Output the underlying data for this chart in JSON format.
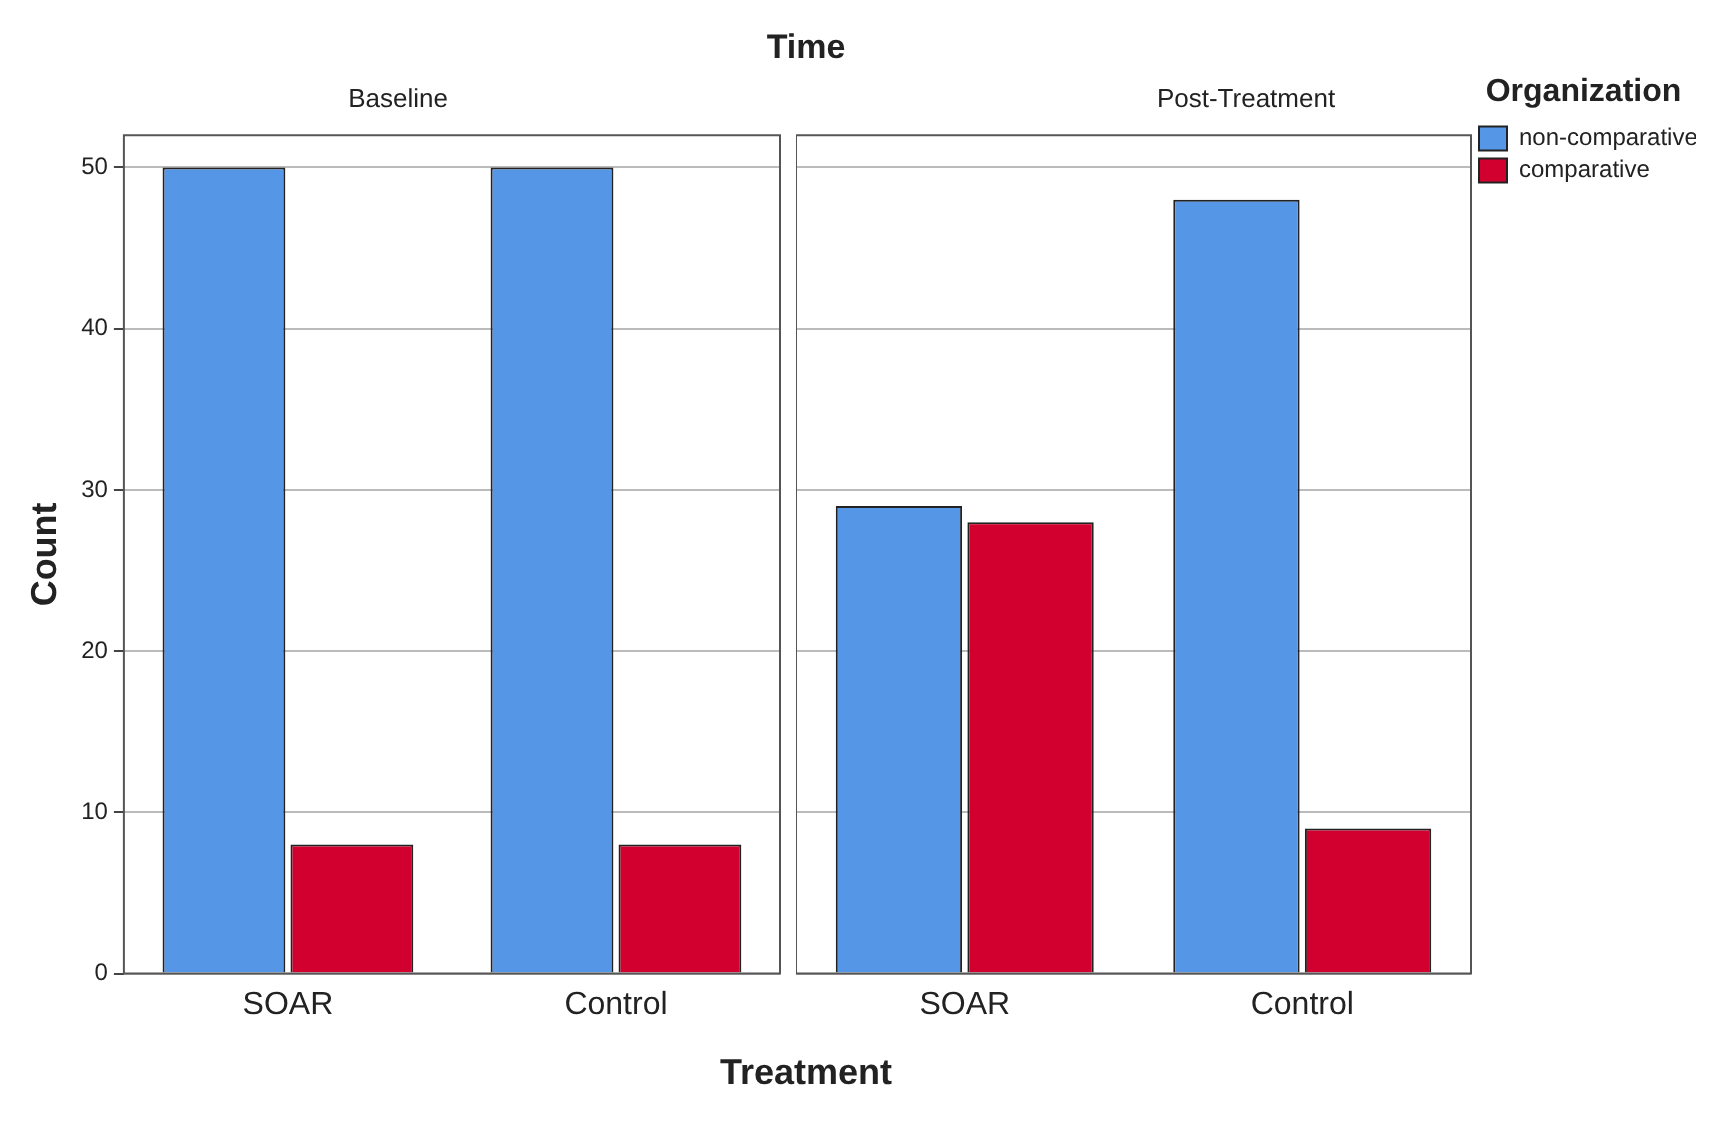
{
  "chart_data": [
    {
      "type": "bar",
      "title": "Baseline",
      "annotations": [
        "Time"
      ],
      "xlabel": "Treatment",
      "ylabel": "Count",
      "categories": [
        "SOAR",
        "Control"
      ],
      "series": [
        {
          "color": "#5596e6",
          "values": [
            50,
            50
          ]
        },
        {
          "color": "#d2002e",
          "values": [
            8,
            8
          ]
        }
      ],
      "ylim": [
        0,
        52
      ],
      "yticks": [
        0,
        10,
        20,
        30,
        40,
        50
      ],
      "grid": "y",
      "legend": false
    },
    {
      "type": "bar",
      "title": "Post-Treatment",
      "legend_title": "Organization",
      "categories": [
        "SOAR",
        "Control"
      ],
      "series": [
        {
          "name": "non-comparative",
          "color": "#5596e6",
          "values": [
            29,
            48
          ]
        },
        {
          "name": "comparative",
          "color": "#d2002e",
          "values": [
            28,
            9
          ]
        }
      ],
      "ylim": [
        0,
        52
      ],
      "yticks": [
        0,
        10,
        20,
        30,
        40,
        50
      ],
      "grid": "y",
      "tick_labels": "x",
      "legend": "top right"
    }
  ]
}
